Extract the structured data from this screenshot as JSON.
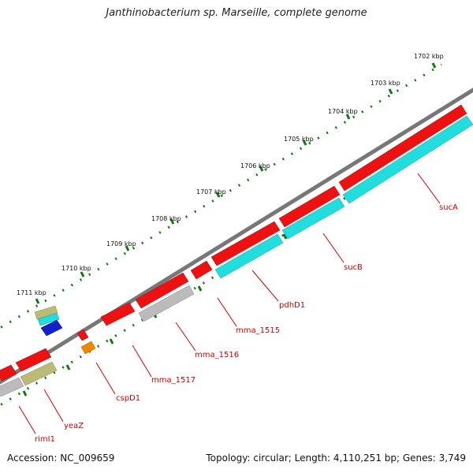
{
  "title": "Janthinobacterium sp. Marseille, complete genome",
  "footer": {
    "accession": "Accession: NC_009659",
    "summary": "Topology: circular; Length: 4,110,251 bp; Genes: 3,749"
  },
  "ticks": [
    "1702 kbp",
    "1703 kbp",
    "1704 kbp",
    "1705 kbp",
    "1706 kbp",
    "1707 kbp",
    "1708 kbp",
    "1709 kbp",
    "1710 kbp",
    "1711 kbp"
  ],
  "gene_labels": [
    "sucA",
    "sucB",
    "pdhD1",
    "mma_1515",
    "mma_1516",
    "mma_1517",
    "cspD1",
    "yeaZ",
    "rimI1"
  ],
  "colors": {
    "cds_forward": "#ee1111",
    "cds_reverse": "#22dddd",
    "other_gray": "#bbbbbb",
    "olive": "#bbbb77",
    "blue": "#1122cc",
    "orange": "#ee8800",
    "backbone": "#777777",
    "tick_green": "#117711",
    "label_red": "#cc0000"
  }
}
